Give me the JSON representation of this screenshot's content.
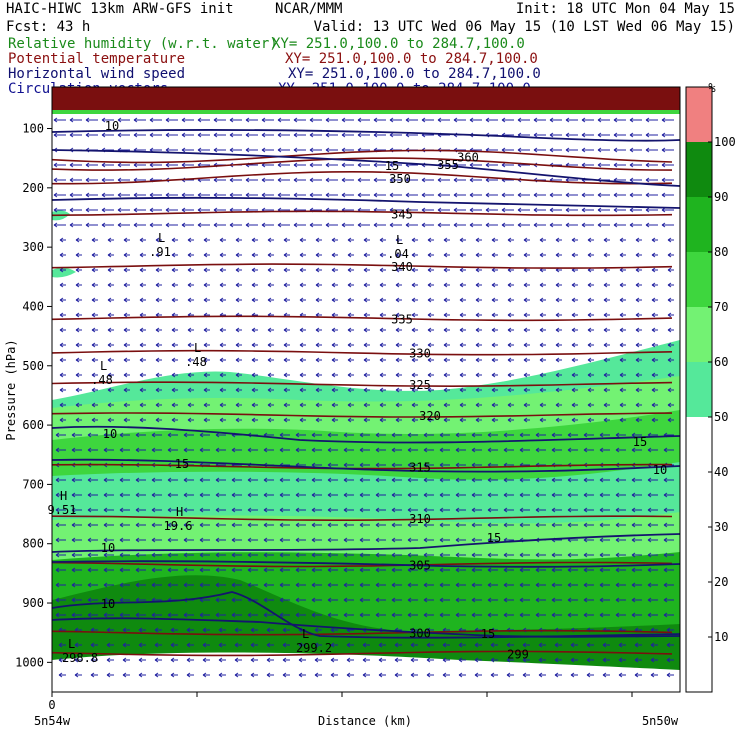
{
  "header": {
    "left_line1": "HAIC-HIWC 13km ARW-GFS init",
    "center_line1": "NCAR/MMM",
    "right_line1": "Init: 18 UTC Mon 04 May 15",
    "left_line2": "Fcst:   43 h",
    "right_line2": "Valid: 13 UTC Wed 06 May 15 (10 LST Wed 06 May 15)"
  },
  "legend": [
    {
      "label": "Relative humidity (w.r.t. water)",
      "xy": "XY= 251.0,100.0 to 284.7,100.0",
      "color": "#1a8a1a"
    },
    {
      "label": "Potential temperature",
      "xy": "XY= 251.0,100.0 to 284.7,100.0",
      "color": "#8b1010"
    },
    {
      "label": "Horizontal wind speed",
      "xy": "XY= 251.0,100.0 to 284.7,100.0",
      "color": "#101070"
    },
    {
      "label": "Circulation vectors",
      "xy": "XY= 251.0,100.0 to 284.7,100.0",
      "color": "#101090"
    }
  ],
  "colors": {
    "theta": "#7a0f0f",
    "wind": "#14146e",
    "vector": "#2020a0",
    "rh_bands": [
      "#ffffff",
      "#ffffff",
      "#ffffff",
      "#ffffff",
      "#ffffff",
      "#55e89a",
      "#73f273",
      "#3ed63e",
      "#1fb41f",
      "#0f8a0f",
      "#f08080"
    ]
  },
  "chart_data": {
    "type": "heatmap",
    "title": "",
    "xlabel": "Distance (km)",
    "ylabel": "Pressure (hPa)",
    "x_ticks": [
      "0"
    ],
    "x_endpoint_labels": [
      "5n54w",
      "5n50w"
    ],
    "y_ticks": [
      100,
      200,
      300,
      400,
      500,
      600,
      700,
      800,
      900,
      1000
    ],
    "ylim": [
      1050,
      30
    ],
    "colorbar": {
      "unit": "%",
      "ticks": [
        10,
        20,
        30,
        40,
        50,
        60,
        70,
        80,
        90,
        100
      ],
      "range": [
        0,
        110
      ]
    },
    "theta_contours": [
      {
        "label": "360",
        "p": 147
      },
      {
        "label": "355",
        "p": 160
      },
      {
        "label": "350",
        "p": 183
      },
      {
        "label": "345",
        "p": 243
      },
      {
        "label": "340",
        "p": 332
      },
      {
        "label": "335",
        "p": 420
      },
      {
        "label": "330",
        "p": 478
      },
      {
        "label": "325",
        "p": 531
      },
      {
        "label": "320",
        "p": 583
      },
      {
        "label": "315",
        "p": 670
      },
      {
        "label": "310",
        "p": 757
      },
      {
        "label": "305",
        "p": 835
      },
      {
        "label": "300",
        "p": 950
      },
      {
        "label": "299",
        "p": 985
      }
    ],
    "wind_contour_labels": [
      "10",
      "15",
      "10",
      "15",
      "15",
      "10",
      "10",
      "15",
      "10",
      "15"
    ],
    "extrema_labels": [
      {
        "type": "L",
        "value": ".91"
      },
      {
        "type": "L",
        "value": ".04"
      },
      {
        "type": "L",
        "value": ".48"
      },
      {
        "type": "L",
        "value": ".48"
      },
      {
        "type": "H",
        "value": "9.51"
      },
      {
        "type": "H",
        "value": "19.6"
      },
      {
        "type": "L",
        "value": "298.8"
      },
      {
        "type": "L",
        "value": "299.2"
      }
    ]
  }
}
